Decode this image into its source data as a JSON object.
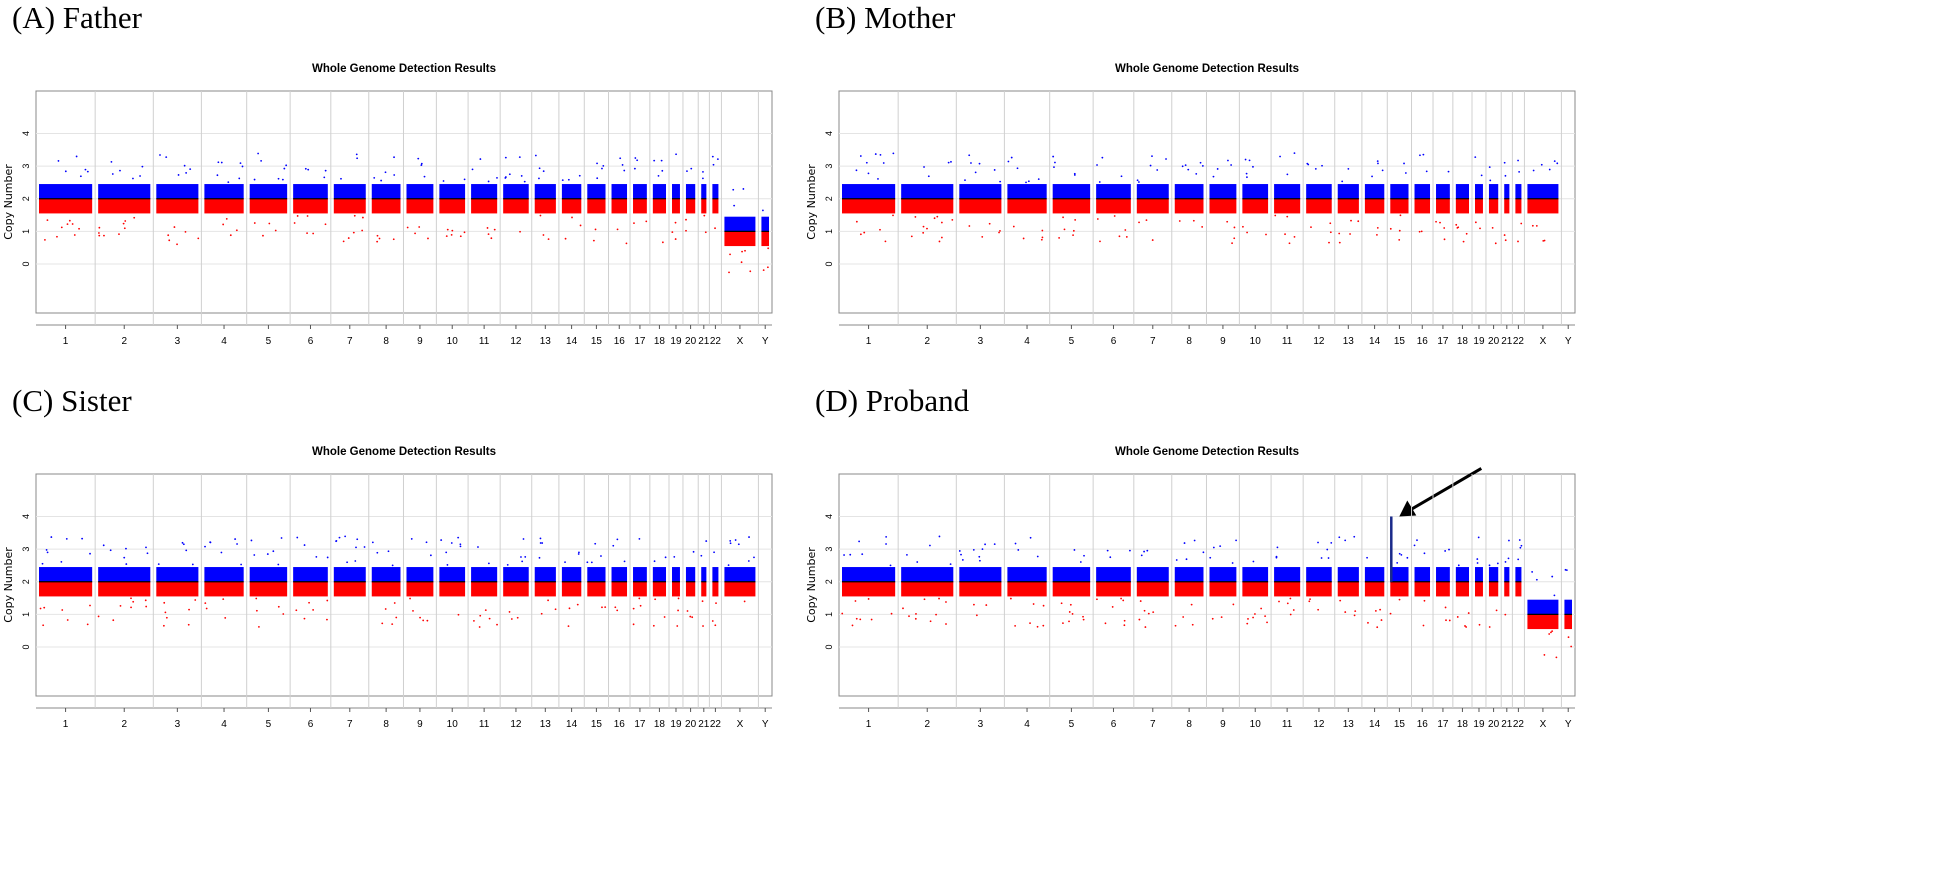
{
  "colors": {
    "gain": "#0000ff",
    "loss": "#ff0000",
    "segment": "#000000",
    "grid": "#d0d0d0"
  },
  "chart_data": [
    {
      "panel_label": "(A) Father",
      "type": "scatter",
      "title": "Whole Genome Detection Results",
      "xlabel": "",
      "ylabel": "Copy Number",
      "yticks": [
        0,
        1,
        2,
        3,
        4
      ],
      "ylim": [
        -1.5,
        5.3
      ],
      "categories": [
        "1",
        "2",
        "3",
        "4",
        "5",
        "6",
        "7",
        "8",
        "9",
        "10",
        "11",
        "12",
        "13",
        "14",
        "15",
        "16",
        "17",
        "18",
        "19",
        "20",
        "21",
        "22",
        "X",
        "Y"
      ],
      "copy_number": [
        2,
        2,
        2,
        2,
        2,
        2,
        2,
        2,
        2,
        2,
        2,
        2,
        2,
        2,
        2,
        2,
        2,
        2,
        2,
        2,
        2,
        2,
        1,
        1
      ],
      "annotation": null
    },
    {
      "panel_label": "(B) Mother",
      "type": "scatter",
      "title": "Whole Genome Detection Results",
      "xlabel": "",
      "ylabel": "Copy Number",
      "yticks": [
        0,
        1,
        2,
        3,
        4
      ],
      "ylim": [
        -1.5,
        5.3
      ],
      "categories": [
        "1",
        "2",
        "3",
        "4",
        "5",
        "6",
        "7",
        "8",
        "9",
        "10",
        "11",
        "12",
        "13",
        "14",
        "15",
        "16",
        "17",
        "18",
        "19",
        "20",
        "21",
        "22",
        "X",
        "Y"
      ],
      "copy_number": [
        2,
        2,
        2,
        2,
        2,
        2,
        2,
        2,
        2,
        2,
        2,
        2,
        2,
        2,
        2,
        2,
        2,
        2,
        2,
        2,
        2,
        2,
        2,
        null
      ],
      "annotation": null
    },
    {
      "panel_label": "(C) Sister",
      "type": "scatter",
      "title": "Whole Genome Detection Results",
      "xlabel": "",
      "ylabel": "Copy Number",
      "yticks": [
        0,
        1,
        2,
        3,
        4
      ],
      "ylim": [
        -1.5,
        5.3
      ],
      "categories": [
        "1",
        "2",
        "3",
        "4",
        "5",
        "6",
        "7",
        "8",
        "9",
        "10",
        "11",
        "12",
        "13",
        "14",
        "15",
        "16",
        "17",
        "18",
        "19",
        "20",
        "21",
        "22",
        "X",
        "Y"
      ],
      "copy_number": [
        2,
        2,
        2,
        2,
        2,
        2,
        2,
        2,
        2,
        2,
        2,
        2,
        2,
        2,
        2,
        2,
        2,
        2,
        2,
        2,
        2,
        2,
        2,
        null
      ],
      "annotation": null
    },
    {
      "panel_label": "(D) Proband",
      "type": "scatter",
      "title": "Whole Genome Detection Results",
      "xlabel": "",
      "ylabel": "Copy Number",
      "yticks": [
        0,
        1,
        2,
        3,
        4
      ],
      "ylim": [
        -1.5,
        5.3
      ],
      "categories": [
        "1",
        "2",
        "3",
        "4",
        "5",
        "6",
        "7",
        "8",
        "9",
        "10",
        "11",
        "12",
        "13",
        "14",
        "15",
        "16",
        "17",
        "18",
        "19",
        "20",
        "21",
        "22",
        "X",
        "Y"
      ],
      "copy_number": [
        2,
        2,
        2,
        2,
        2,
        2,
        2,
        2,
        2,
        2,
        2,
        2,
        2,
        2,
        2,
        2,
        2,
        2,
        2,
        2,
        2,
        2,
        1,
        1
      ],
      "annotation": {
        "chromosome": "15",
        "copy_number": 4,
        "marker": "arrow"
      }
    }
  ]
}
